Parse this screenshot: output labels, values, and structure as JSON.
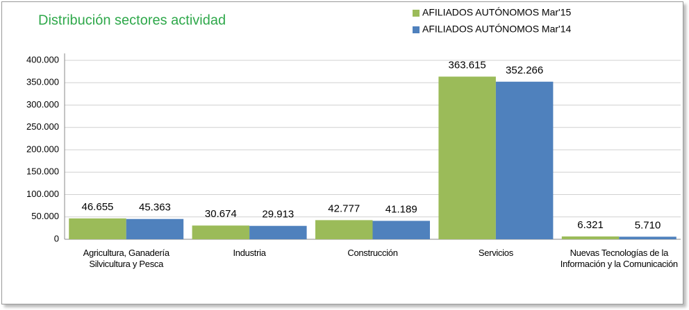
{
  "chart_data": {
    "type": "bar",
    "title": "Distribución sectores actividad",
    "categories": [
      "Agricultura, Ganadería Silvicultura y Pesca",
      "Industria",
      "Construcción",
      "Servicios",
      "Nuevas Tecnologías de la Información y la Comunicación"
    ],
    "series": [
      {
        "name": "AFILIADOS AUTÓNOMOS Mar'15",
        "color": "#9bbb59",
        "values": [
          46655,
          30674,
          42777,
          363615,
          6321
        ],
        "value_labels": [
          "46.655",
          "30.674",
          "42.777",
          "363.615",
          "6.321"
        ]
      },
      {
        "name": "AFILIADOS AUTÓNOMOS Mar'14",
        "color": "#4f81bd",
        "values": [
          45363,
          29913,
          41189,
          352266,
          5710
        ],
        "value_labels": [
          "45.363",
          "29.913",
          "41.189",
          "352.266",
          "5.710"
        ]
      }
    ],
    "ylim": [
      0,
      400000
    ],
    "yticks": [
      0,
      {
        "value": 50000,
        "label": "50.000"
      },
      {
        "value": 100000,
        "label": "100.000"
      },
      {
        "value": 150000,
        "label": "150.000"
      },
      {
        "value": 200000,
        "label": "200.000"
      },
      {
        "value": 250000,
        "label": "250.000"
      },
      {
        "value": 300000,
        "label": "300.000"
      },
      {
        "value": 350000,
        "label": "350.000"
      },
      {
        "value": 400000,
        "label": "400.000"
      }
    ],
    "grid": true,
    "legend": "top-right"
  }
}
